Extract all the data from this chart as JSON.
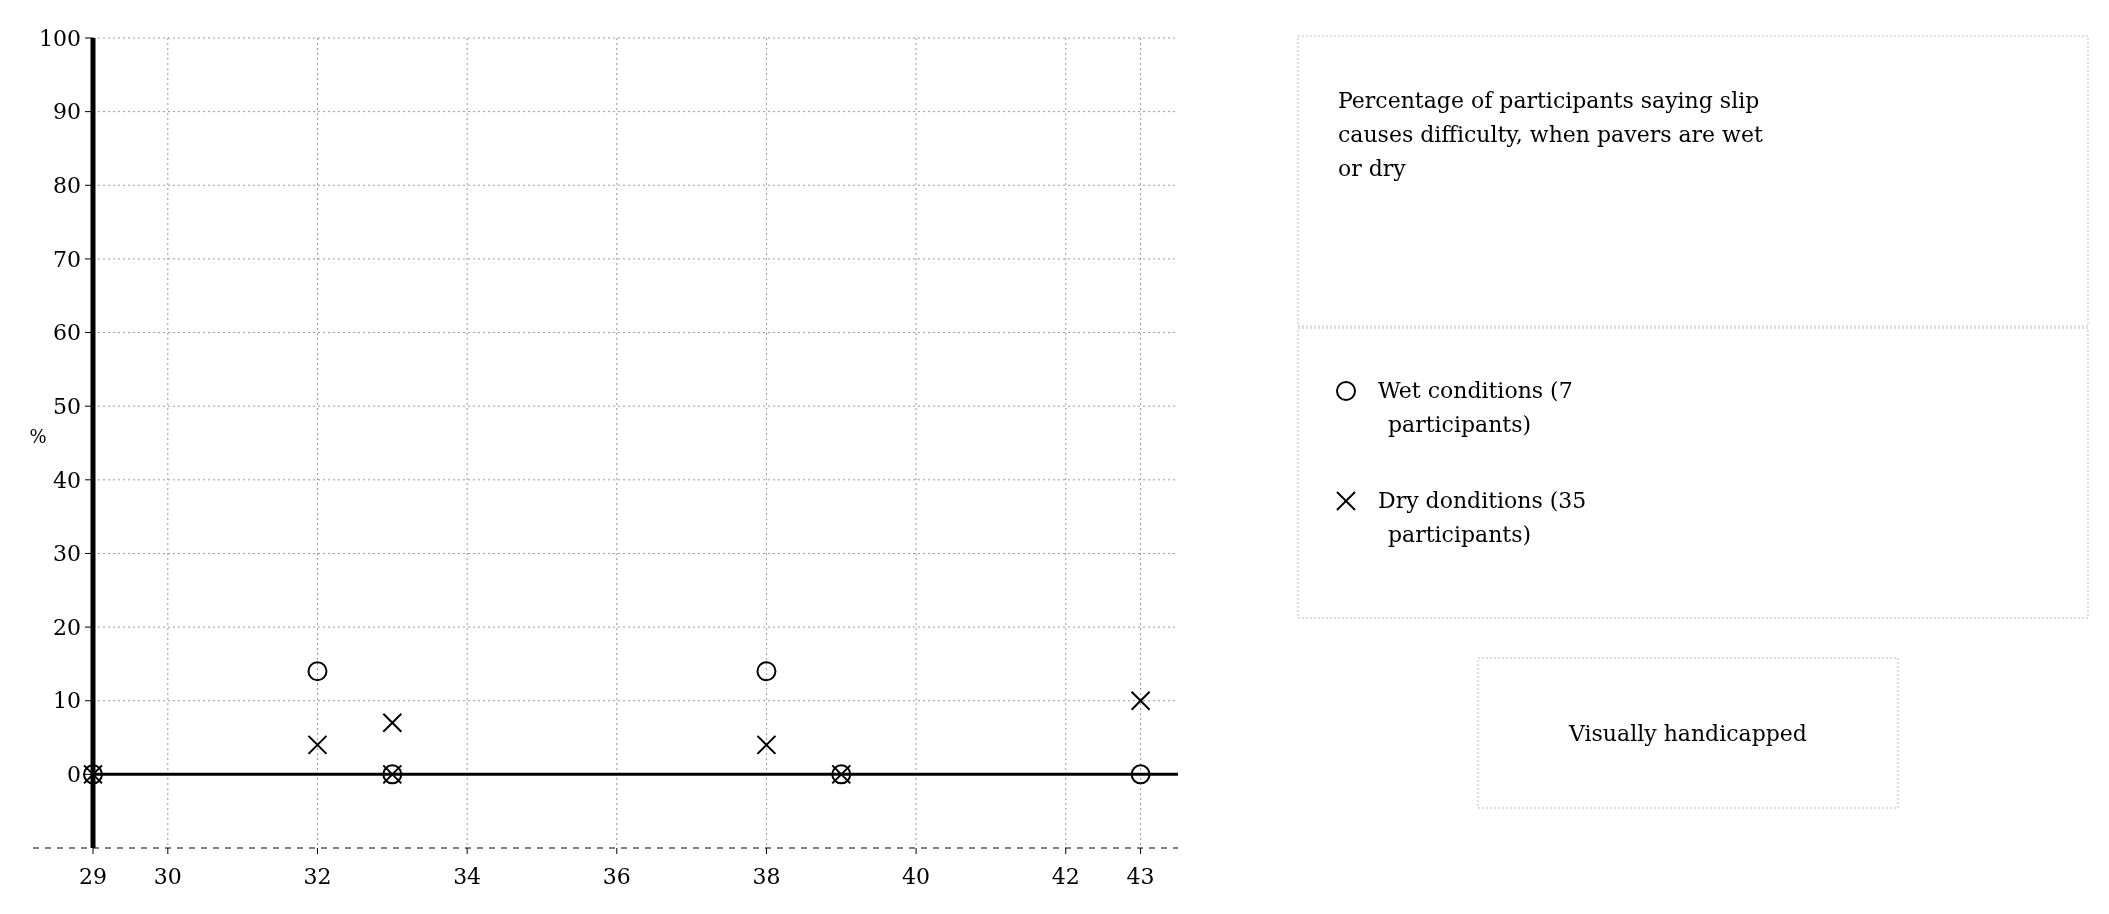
{
  "chart_data": {
    "type": "scatter",
    "title": "Percentage of participants saying slip causes difficulty, when pavers are wet or dry",
    "annotations": [
      "Visually handicapped"
    ],
    "ylabel": "%",
    "x": [
      29,
      32,
      33,
      38,
      39,
      43
    ],
    "xlim": [
      29,
      43.5
    ],
    "xticks": [
      29,
      30,
      32,
      34,
      36,
      38,
      40,
      42,
      43
    ],
    "ylim": [
      -10,
      100
    ],
    "yticks": [
      0,
      10,
      20,
      30,
      40,
      50,
      60,
      70,
      80,
      90,
      100
    ],
    "grid": true,
    "legend": "right",
    "series": [
      {
        "name": "Wet conditions (7 participants)",
        "color": "#000000",
        "marker": "circle",
        "values": [
          0,
          14,
          0,
          14,
          0,
          0
        ]
      },
      {
        "name": "Dry donditions (35 participants)",
        "color": "#000000",
        "marker": "cross",
        "x": [
          29,
          32,
          33,
          33,
          38,
          39,
          43
        ],
        "values": [
          0,
          4,
          7,
          0,
          4,
          0,
          10
        ]
      }
    ]
  }
}
